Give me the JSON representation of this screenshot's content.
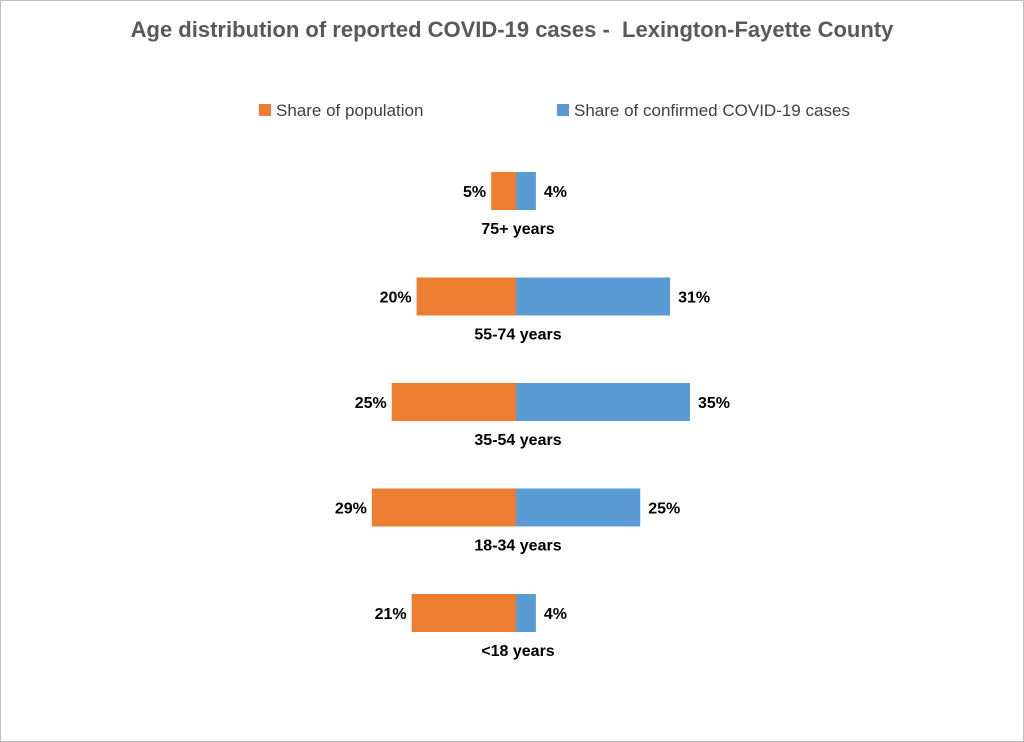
{
  "chart_data": {
    "type": "bar",
    "orientation": "horizontal-diverging",
    "title": "Age distribution of reported COVID-19 cases -  Lexington-Fayette County",
    "categories": [
      "75+ years",
      "55-74 years",
      "35-54 years",
      "18-34 years",
      "<18 years"
    ],
    "series": [
      {
        "name": "Share of population",
        "values": [
          5,
          20,
          25,
          29,
          21
        ],
        "labels": [
          "5%",
          "20%",
          "25%",
          "29%",
          "21%"
        ],
        "color": "#ed7d31",
        "side": "left"
      },
      {
        "name": "Share of confirmed COVID-19 cases",
        "values": [
          4,
          31,
          35,
          25,
          4
        ],
        "labels": [
          "4%",
          "31%",
          "35%",
          "25%",
          "4%"
        ],
        "color": "#5b9bd5",
        "side": "right"
      }
    ],
    "unit": "%",
    "grid": false,
    "legend_position": "top"
  }
}
